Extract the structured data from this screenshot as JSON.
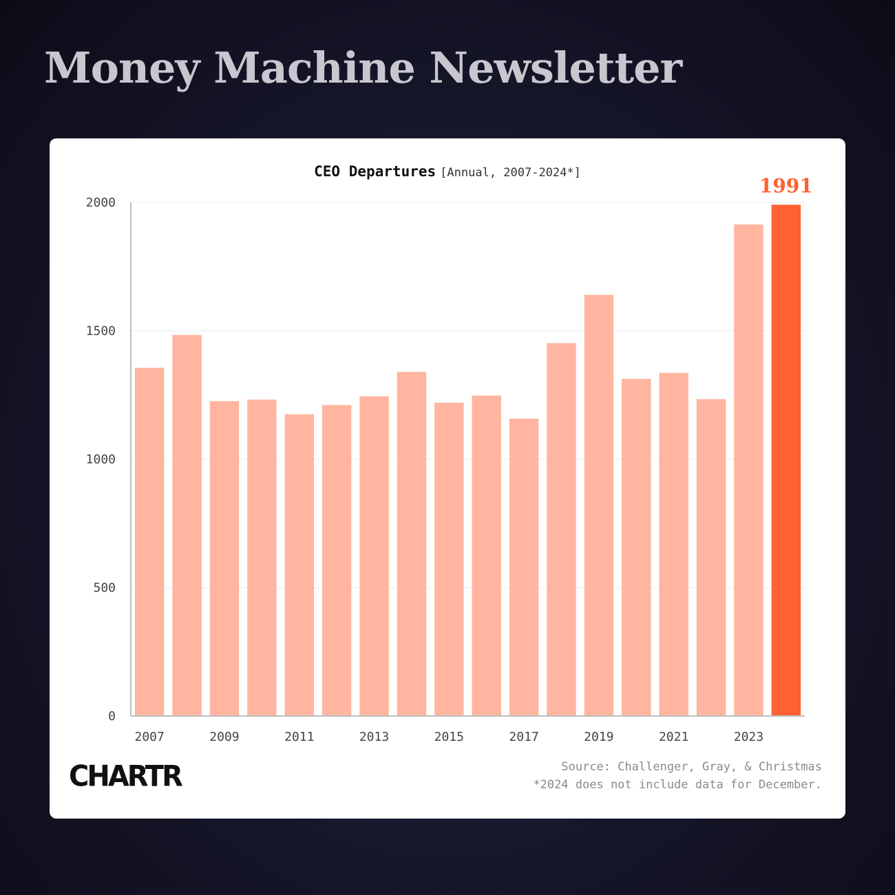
{
  "header": {
    "title": "Money Machine Newsletter"
  },
  "chart_data": {
    "type": "bar",
    "title": "CEO Departures",
    "subtitle": "[Annual, 2007-2024*]",
    "categories": [
      "2007",
      "2008",
      "2009",
      "2010",
      "2011",
      "2012",
      "2013",
      "2014",
      "2015",
      "2016",
      "2017",
      "2018",
      "2019",
      "2020",
      "2021",
      "2022",
      "2023",
      "2024"
    ],
    "values": [
      1356,
      1484,
      1226,
      1232,
      1175,
      1211,
      1245,
      1340,
      1220,
      1248,
      1158,
      1452,
      1640,
      1313,
      1336,
      1234,
      1914,
      1991
    ],
    "x_tick_labels": [
      "2007",
      "2009",
      "2011",
      "2013",
      "2015",
      "2017",
      "2019",
      "2021",
      "2023"
    ],
    "y_ticks": [
      0,
      500,
      1000,
      1500,
      2000
    ],
    "ylim": [
      0,
      2000
    ],
    "highlight": {
      "category": "2024",
      "label": "1991"
    },
    "colors": {
      "bar": "#ffb59f",
      "highlight": "#ff6130"
    },
    "grid": true
  },
  "footer": {
    "logo": "CHARTR",
    "source": "Source: Challenger, Gray, & Christmas",
    "note": "*2024 does not include data for December."
  }
}
